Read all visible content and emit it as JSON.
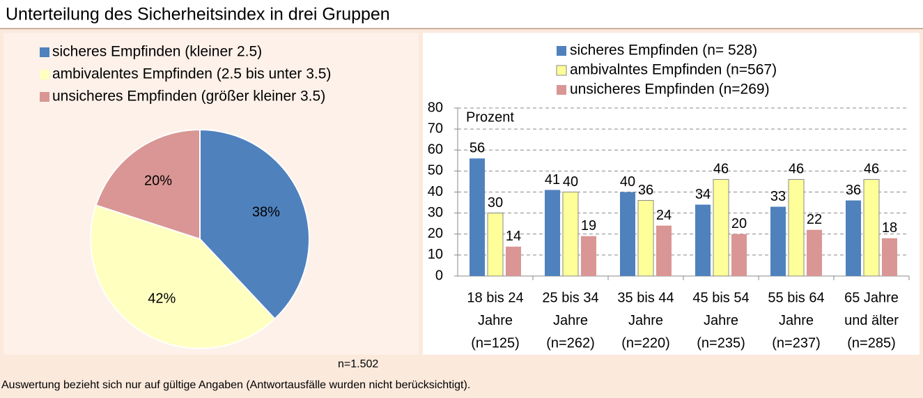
{
  "title": "Unterteilung des Sicherheitsindex in drei Gruppen",
  "chart_data": [
    {
      "type": "pie",
      "categories": [
        "sicheres Empfinden (kleiner 2.5)",
        "ambivalentes Empfinden (2.5 bis unter 3.5)",
        "unsicheres Empfinden (größer kleiner 3.5)"
      ],
      "values": [
        38,
        42,
        20
      ],
      "value_labels": [
        "38%",
        "42%",
        "20%"
      ],
      "colors": [
        "#4f81bd",
        "#ffffc0",
        "#d99694"
      ],
      "legend": "top"
    },
    {
      "type": "bar",
      "y_label": "Prozent",
      "categories": [
        [
          "18 bis 24",
          "Jahre",
          "(n=125)"
        ],
        [
          "25 bis 34",
          "Jahre",
          "(n=262)"
        ],
        [
          "35 bis 44",
          "Jahre",
          "(n=220)"
        ],
        [
          "45 bis 54",
          "Jahre",
          "(n=235)"
        ],
        [
          "55 bis 64",
          "Jahre",
          "(n=237)"
        ],
        [
          "65 Jahre",
          "und älter",
          "(n=285)"
        ]
      ],
      "series": [
        {
          "name": "sicheres Empfinden (n= 528)",
          "color": "#4f81bd",
          "values": [
            56,
            41,
            40,
            34,
            33,
            36
          ]
        },
        {
          "name": "ambivalntes Empfinden (n=567)",
          "color": "#ffff99",
          "values": [
            30,
            40,
            36,
            46,
            46,
            46
          ]
        },
        {
          "name": "unsicheres Empfinden (n=269)",
          "color": "#d99694",
          "values": [
            14,
            19,
            24,
            20,
            22,
            18
          ]
        }
      ],
      "ylim": [
        0,
        80
      ],
      "yticks": [
        0,
        10,
        20,
        30,
        40,
        50,
        60,
        70,
        80
      ],
      "grid": true,
      "legend": "top"
    }
  ],
  "sample_note": "n=1.502",
  "footnote": "Auswertung bezieht sich nur auf gültige Angaben (Antwortausfälle wurden nicht berücksichtigt)."
}
